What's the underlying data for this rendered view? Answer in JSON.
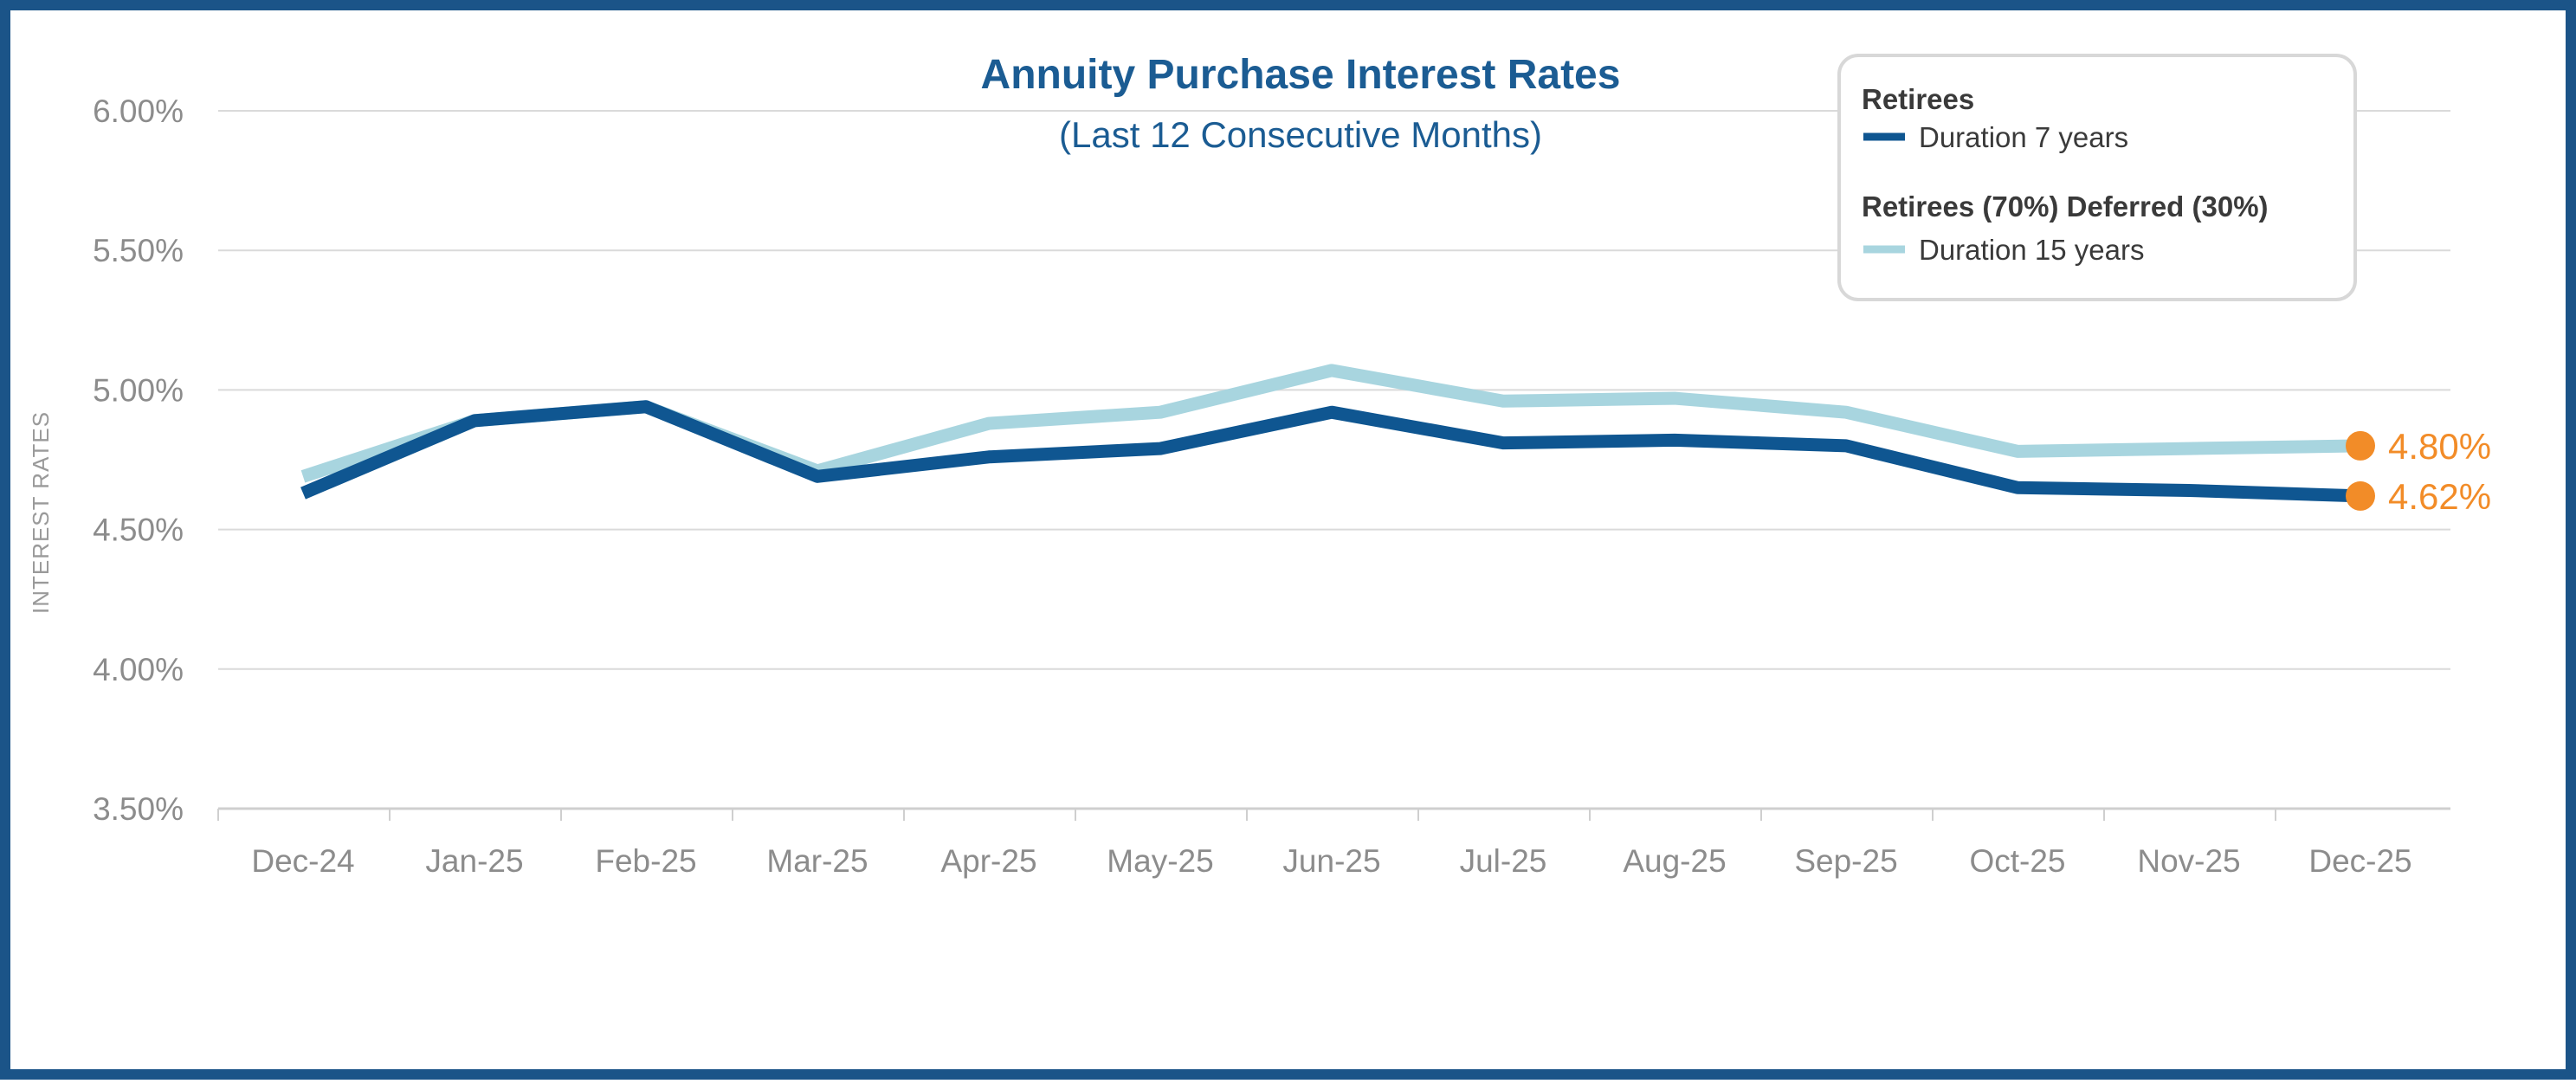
{
  "chart_data": {
    "type": "line",
    "title": "Annuity Purchase Interest Rates",
    "subtitle": "(Last 12 Consecutive Months)",
    "xlabel": "",
    "ylabel": "INTEREST RATES",
    "categories": [
      "Dec-24",
      "Jan-25",
      "Feb-25",
      "Mar-25",
      "Apr-25",
      "May-25",
      "Jun-25",
      "Jul-25",
      "Aug-25",
      "Sep-25",
      "Oct-25",
      "Nov-25",
      "Dec-25"
    ],
    "ylim": [
      3.5,
      6.0
    ],
    "yticks": [
      3.5,
      4.0,
      4.5,
      5.0,
      5.5,
      6.0
    ],
    "ytick_labels": [
      "3.50%",
      "4.00%",
      "4.50%",
      "5.00%",
      "5.50%",
      "6.00%"
    ],
    "grid": true,
    "series": [
      {
        "name": "Duration 15 years",
        "group": "Retirees (70%) Deferred (30%)",
        "color": "#a8d5df",
        "values": [
          4.69,
          4.89,
          4.94,
          4.71,
          4.88,
          4.92,
          5.07,
          4.96,
          4.97,
          4.92,
          4.78,
          4.79,
          4.8
        ],
        "end_label": "4.80%"
      },
      {
        "name": "Duration 7 years",
        "group": "Retirees",
        "color": "#0f5691",
        "values": [
          4.63,
          4.89,
          4.94,
          4.69,
          4.76,
          4.79,
          4.92,
          4.81,
          4.82,
          4.8,
          4.65,
          4.64,
          4.62
        ],
        "end_label": "4.62%"
      }
    ],
    "legend": {
      "position": "top-right",
      "groups": [
        {
          "title": "Retirees",
          "item": "Duration 7 years",
          "color": "#0f5691"
        },
        {
          "title": "Retirees (70%) Deferred (30%)",
          "item": "Duration 15 years",
          "color": "#a8d5df"
        }
      ]
    },
    "end_marker_color": "#f28c28",
    "grid_color": "#dadada",
    "frame_color": "#1b5488"
  }
}
